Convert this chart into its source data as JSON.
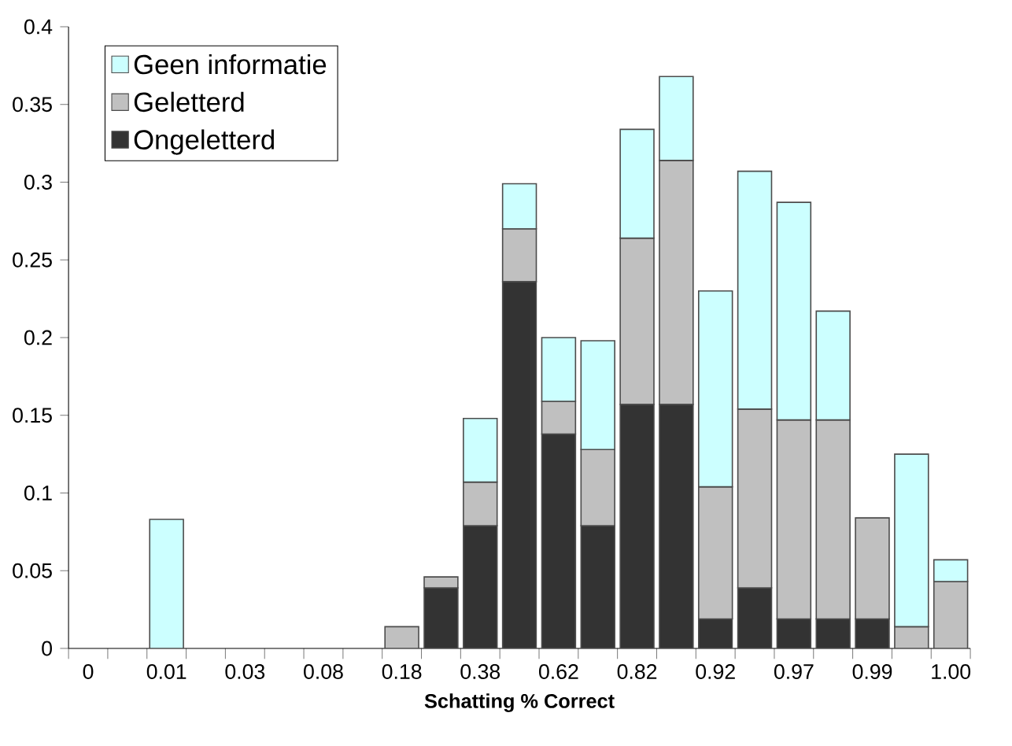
{
  "chart_data": {
    "type": "bar",
    "stacked": true,
    "xlabel": "Schatting % Correct",
    "categories": [
      "0",
      null,
      "0.01",
      null,
      "0.03",
      null,
      "0.08",
      null,
      "0.18",
      null,
      "0.38",
      null,
      "0.62",
      null,
      "0.82",
      null,
      "0.92",
      null,
      "0.97",
      null,
      "0.99",
      null,
      "1.00"
    ],
    "series": [
      {
        "name": "Ongeletterd",
        "color": "#333333",
        "values": [
          null,
          null,
          null,
          null,
          null,
          null,
          null,
          null,
          null,
          0.039,
          0.079,
          0.236,
          0.138,
          0.079,
          0.157,
          0.157,
          0.019,
          0.039,
          0.019,
          0.019,
          0.019,
          null,
          null
        ]
      },
      {
        "name": "Geletterd",
        "color": "#c0c0c0",
        "values": [
          null,
          null,
          null,
          null,
          null,
          null,
          null,
          null,
          0.014,
          0.007,
          0.028,
          0.034,
          0.021,
          0.049,
          0.107,
          0.157,
          0.085,
          0.115,
          0.128,
          0.128,
          0.065,
          0.014,
          0.043
        ]
      },
      {
        "name": "Geen informatie",
        "color": "#ccffff",
        "values": [
          null,
          null,
          0.083,
          null,
          null,
          null,
          null,
          null,
          null,
          null,
          0.041,
          0.029,
          0.041,
          0.07,
          0.07,
          0.054,
          0.126,
          0.153,
          0.14,
          0.07,
          null,
          0.111,
          0.014
        ]
      }
    ],
    "ylim": [
      0,
      0.4
    ],
    "yticks": [
      0,
      0.05,
      0.1,
      0.15,
      0.2,
      0.25,
      0.3,
      0.35,
      0.4
    ],
    "legend": "top left",
    "grid": false
  }
}
